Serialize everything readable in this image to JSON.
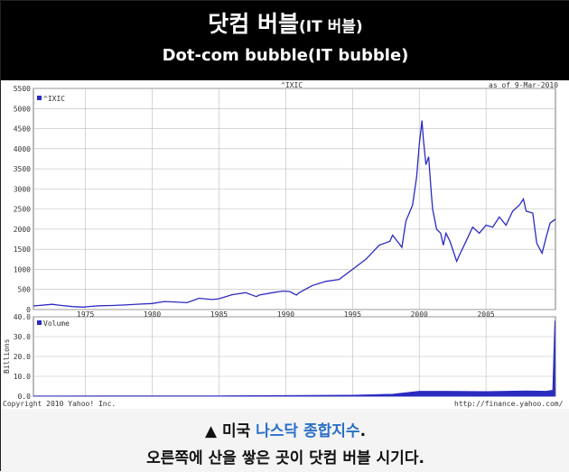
{
  "header": {
    "title_main": "닷컴 버블",
    "title_paren": "(IT 버블)",
    "subtitle": "Dot-com bubble(IT bubble)"
  },
  "caption": {
    "line1_prefix": "▲ 미국 ",
    "line1_highlight": "나스닥 종합지수",
    "line1_suffix": ".",
    "line2": "오른쪽에 산을 쌓은 곳이 닷컴 버블 시기다.",
    "highlight_color": "#2a6fc9"
  },
  "chart_data": {
    "type": "line",
    "title": "^IXIC",
    "as_of": "as of  9-Mar-2010",
    "copyright": "Copyright 2010 Yahoo! Inc.",
    "source_url": "http://finance.yahoo.com/",
    "price_panel": {
      "legend": "^IXIC",
      "series_color": "#2b2bc2",
      "x_range": [
        1971.1,
        2010.2
      ],
      "ylim": [
        0,
        5500
      ],
      "y_ticks": [
        0,
        500,
        1000,
        1500,
        2000,
        2500,
        3000,
        3500,
        4000,
        4500,
        5000,
        5500
      ],
      "x_ticks": [
        1975,
        1980,
        1985,
        1990,
        1995,
        2000,
        2005
      ],
      "grid": true,
      "legend_position": "top-left",
      "series": [
        {
          "name": "^IXIC",
          "x": [
            1971.1,
            1972.5,
            1973,
            1974,
            1974.8,
            1975.5,
            1976,
            1977,
            1978,
            1979,
            1980,
            1980.9,
            1981.5,
            1982.6,
            1983.5,
            1984.5,
            1985,
            1985.5,
            1986,
            1987,
            1987.8,
            1988,
            1989,
            1989.8,
            1990.3,
            1990.8,
            1991,
            1992,
            1993,
            1994,
            1995,
            1996,
            1997,
            1997.8,
            1998,
            1998.7,
            1999,
            1999.5,
            1999.8,
            2000.0,
            2000.2,
            2000.3,
            2000.5,
            2000.7,
            2000.9,
            2001.0,
            2001.3,
            2001.6,
            2001.8,
            2002.0,
            2002.3,
            2002.8,
            2003.0,
            2003.5,
            2004.0,
            2004.5,
            2005.0,
            2005.5,
            2006.0,
            2006.5,
            2007.0,
            2007.5,
            2007.8,
            2008.0,
            2008.5,
            2008.8,
            2009.2,
            2009.5,
            2009.8,
            2010.2
          ],
          "y": [
            90,
            130,
            110,
            75,
            60,
            80,
            95,
            100,
            115,
            135,
            150,
            200,
            190,
            170,
            280,
            250,
            270,
            320,
            370,
            420,
            320,
            360,
            420,
            460,
            450,
            360,
            420,
            600,
            700,
            750,
            1000,
            1250,
            1600,
            1700,
            1850,
            1550,
            2200,
            2600,
            3300,
            4100,
            4700,
            4250,
            3600,
            3800,
            2900,
            2500,
            2000,
            1900,
            1600,
            1900,
            1700,
            1200,
            1350,
            1700,
            2050,
            1900,
            2100,
            2050,
            2300,
            2100,
            2450,
            2600,
            2750,
            2450,
            2400,
            1650,
            1400,
            1800,
            2150,
            2250
          ]
        }
      ]
    },
    "volume_panel": {
      "legend": "Volume",
      "ylabel": "Billions",
      "ylim": [
        0,
        40
      ],
      "y_ticks": [
        0,
        10,
        20,
        30,
        40
      ],
      "x_ticks": [
        1975,
        1980,
        1985,
        1990,
        1995,
        2000,
        2005
      ],
      "grid": true,
      "series": [
        {
          "name": "Volume",
          "x": [
            1971.1,
            1985,
            1990,
            1995,
            1998,
            2000,
            2002,
            2005,
            2008,
            2009.5,
            2010.0,
            2010.15
          ],
          "y": [
            0.1,
            0.2,
            0.3,
            0.5,
            1.0,
            2.5,
            2.5,
            2.3,
            2.7,
            2.5,
            3,
            38
          ]
        }
      ]
    }
  }
}
